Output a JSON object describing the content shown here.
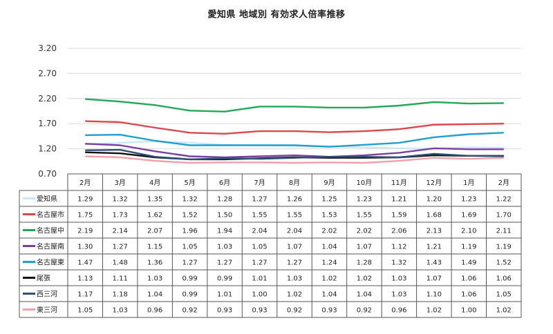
{
  "chart_data": {
    "type": "line",
    "title": "愛知県 地域別 有効求人倍率推移",
    "categories": [
      "2月",
      "3月",
      "4月",
      "5月",
      "6月",
      "7月",
      "8月",
      "9月",
      "10月",
      "11月",
      "12月",
      "1月",
      "2月"
    ],
    "ylim": [
      0.7,
      3.2
    ],
    "yticks": [
      "0.70",
      "1.20",
      "1.70",
      "2.20",
      "2.70",
      "3.20"
    ],
    "grid": true,
    "legend": "data-table",
    "series": [
      {
        "name": "愛知県",
        "color": "#cbe7f6",
        "values": [
          "1.29",
          "1.32",
          "1.35",
          "1.32",
          "1.28",
          "1.27",
          "1.26",
          "1.25",
          "1.23",
          "1.21",
          "1.20",
          "1.23",
          "1.22"
        ]
      },
      {
        "name": "名古屋市",
        "color": "#e0454a",
        "values": [
          "1.75",
          "1.73",
          "1.62",
          "1.52",
          "1.50",
          "1.55",
          "1.55",
          "1.53",
          "1.55",
          "1.59",
          "1.68",
          "1.69",
          "1.70"
        ]
      },
      {
        "name": "名古屋中",
        "color": "#20a858",
        "values": [
          "2.19",
          "2.14",
          "2.07",
          "1.96",
          "1.94",
          "2.04",
          "2.04",
          "2.02",
          "2.02",
          "2.06",
          "2.13",
          "2.10",
          "2.11"
        ]
      },
      {
        "name": "名古屋南",
        "color": "#7a3fa0",
        "values": [
          "1.30",
          "1.27",
          "1.15",
          "1.05",
          "1.03",
          "1.05",
          "1.07",
          "1.04",
          "1.07",
          "1.12",
          "1.21",
          "1.19",
          "1.19"
        ]
      },
      {
        "name": "名古屋東",
        "color": "#1e9fcf",
        "values": [
          "1.47",
          "1.48",
          "1.36",
          "1.27",
          "1.27",
          "1.27",
          "1.27",
          "1.24",
          "1.28",
          "1.32",
          "1.43",
          "1.49",
          "1.52"
        ]
      },
      {
        "name": "尾張",
        "color": "#111111",
        "values": [
          "1.13",
          "1.11",
          "1.03",
          "0.99",
          "0.99",
          "1.01",
          "1.03",
          "1.02",
          "1.02",
          "1.03",
          "1.07",
          "1.06",
          "1.06"
        ]
      },
      {
        "name": "西三河",
        "color": "#2f4f77",
        "values": [
          "1.17",
          "1.18",
          "1.04",
          "0.99",
          "1.01",
          "1.00",
          "1.02",
          "1.04",
          "1.04",
          "1.03",
          "1.10",
          "1.06",
          "1.05"
        ]
      },
      {
        "name": "東三河",
        "color": "#f4a0a8",
        "values": [
          "1.05",
          "1.03",
          "0.96",
          "0.92",
          "0.93",
          "0.93",
          "0.92",
          "0.93",
          "0.92",
          "0.96",
          "1.02",
          "1.00",
          "1.02"
        ]
      }
    ]
  }
}
